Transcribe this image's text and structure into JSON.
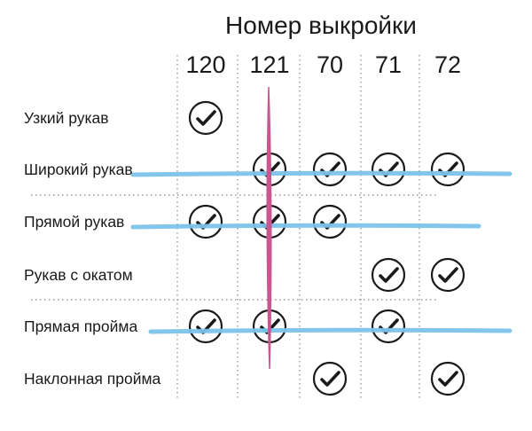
{
  "title": "Номер выкройки",
  "columns": [
    "120",
    "121",
    "70",
    "71",
    "72"
  ],
  "rows": [
    {
      "label": "Узкий рукав",
      "checks": [
        true,
        false,
        false,
        false,
        false
      ]
    },
    {
      "label": "Широкий рукав",
      "checks": [
        false,
        true,
        true,
        true,
        true
      ]
    },
    {
      "label": "Прямой рукав",
      "checks": [
        true,
        true,
        true,
        false,
        false
      ]
    },
    {
      "label": "Рукав с окатом",
      "checks": [
        false,
        false,
        false,
        true,
        true
      ]
    },
    {
      "label": "Прямая пройма",
      "checks": [
        true,
        true,
        false,
        true,
        false
      ]
    },
    {
      "label": "Наклонная пройма",
      "checks": [
        false,
        false,
        true,
        false,
        true
      ]
    }
  ],
  "highlights": {
    "struck_rows": [
      "Широкий рукав",
      "Прямой рукав",
      "Прямая пройма"
    ],
    "struck_column": "121",
    "row_stroke_color": "#7cc3ea",
    "column_stroke_color": "#c8578f"
  },
  "icons": {
    "check": "check-circle-icon"
  }
}
